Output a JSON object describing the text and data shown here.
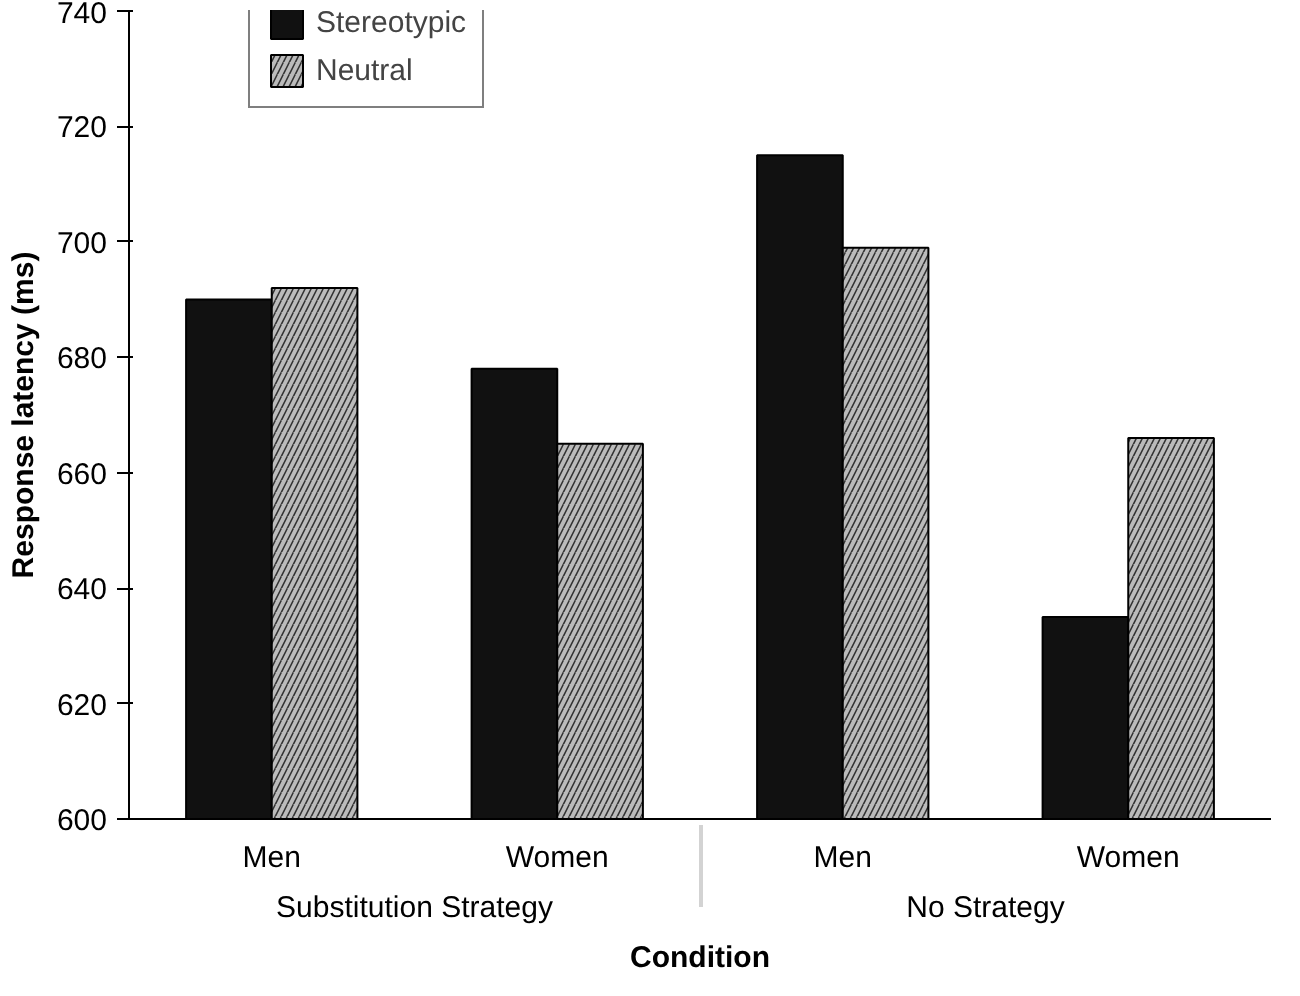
{
  "chart_data": {
    "type": "bar",
    "xlabel": "Condition",
    "ylabel": "Response latency (ms)",
    "categories": [
      "Men",
      "Women",
      "Men",
      "Women"
    ],
    "annotations": [
      "Substitution Strategy",
      "No Strategy"
    ],
    "series": [
      {
        "name": "Stereotypic",
        "color": "#111111",
        "values": [
          690,
          678,
          715,
          635
        ]
      },
      {
        "name": "Neutral",
        "color": "#bbbbbb",
        "values": [
          692,
          665,
          699,
          666
        ]
      }
    ],
    "ylim": [
      600,
      740
    ],
    "yticks": [
      600,
      620,
      640,
      660,
      680,
      700,
      720,
      740
    ],
    "grid": false,
    "legend": "top"
  }
}
